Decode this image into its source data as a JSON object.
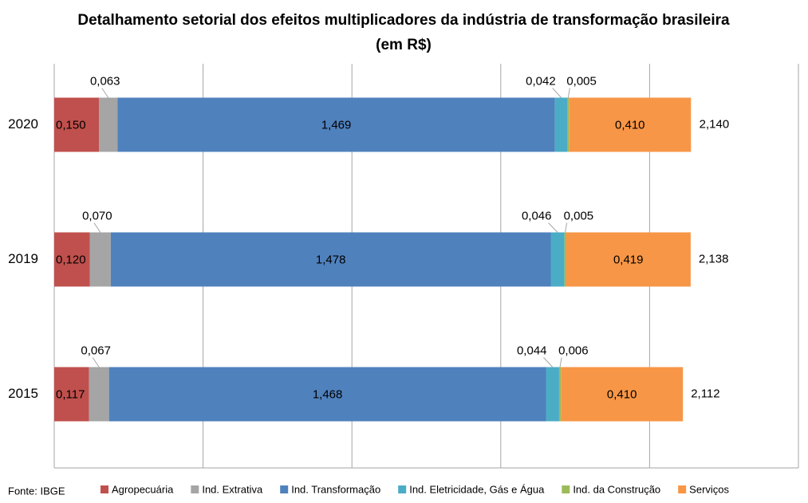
{
  "chart_data": {
    "type": "bar",
    "orientation": "horizontal",
    "stacked": true,
    "title": "Detalhamento setorial dos efeitos multiplicadores da indústria de transformação brasileira (em R$)",
    "source": "Fonte: IBGE",
    "categories": [
      "2020",
      "2019",
      "2015"
    ],
    "xlim": [
      0,
      2.5
    ],
    "xticks": [
      0,
      0.5,
      1,
      1.5,
      2,
      2.5
    ],
    "grid": true,
    "legend": "bottom",
    "series": [
      {
        "name": "Agropecuária",
        "color": "#c0504d",
        "values": [
          0.15,
          0.12,
          0.117
        ],
        "value_labels": [
          "0,150",
          "0,120",
          "0,117"
        ]
      },
      {
        "name": "Ind. Extrativa",
        "color": "#a5a5a5",
        "values": [
          0.063,
          0.07,
          0.067
        ],
        "value_labels": [
          "0,063",
          "0,070",
          "0,067"
        ]
      },
      {
        "name": "Ind. Transformação",
        "color": "#4f81bd",
        "values": [
          1.469,
          1.478,
          1.468
        ],
        "value_labels": [
          "1,469",
          "1,478",
          "1,468"
        ]
      },
      {
        "name": "Ind. Eletricidade, Gás e Água",
        "color": "#4bacc6",
        "values": [
          0.042,
          0.046,
          0.044
        ],
        "value_labels": [
          "0,042",
          "0,046",
          "0,044"
        ]
      },
      {
        "name": "Ind. da Construção",
        "color": "#9bbb59",
        "values": [
          0.005,
          0.005,
          0.006
        ],
        "value_labels": [
          "0,005",
          "0,005",
          "0,006"
        ]
      },
      {
        "name": "Serviços",
        "color": "#f79646",
        "values": [
          0.41,
          0.419,
          0.41
        ],
        "value_labels": [
          "0,410",
          "0,419",
          "0,410"
        ]
      }
    ],
    "totals": {
      "values": [
        2.14,
        2.138,
        2.112
      ],
      "value_labels": [
        "2,140",
        "2,138",
        "2,112"
      ]
    }
  }
}
